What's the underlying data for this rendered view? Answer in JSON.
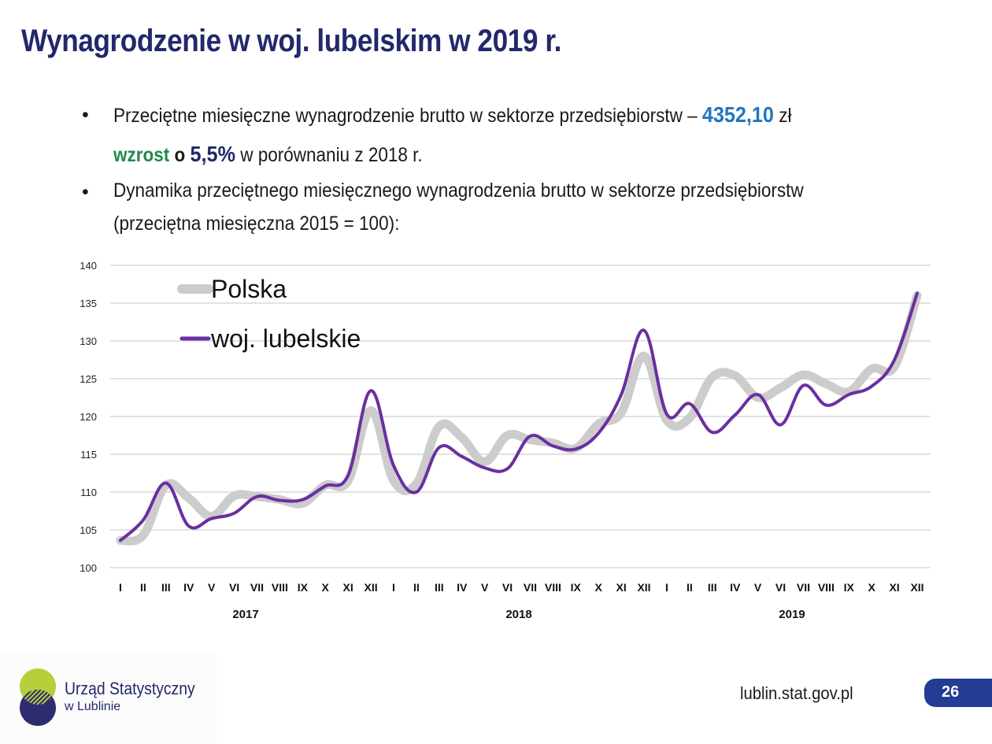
{
  "slide": {
    "title": "Wynagrodzenie w woj. lubelskim w 2019 r.",
    "bullet_symbol": "•",
    "bullet1": {
      "text_before": "Przeciętne miesięczne wynagrodzenie brutto w sektorze przedsiębiorstw –",
      "value": "4352,10",
      "unit": "zł",
      "line2_green": "wzrost",
      "line2_o": "o",
      "line2_value": "5,5%",
      "line2_rest": "w porównaniu z 2018 r."
    },
    "bullet2": {
      "line1": "Dynamika przeciętnego miesięcznego wynagrodzenia brutto w sektorze przedsiębiorstw",
      "line2": "(przeciętna miesięczna 2015 = 100):"
    },
    "colors": {
      "title": "#22286b",
      "value_blue": "#1f77c0",
      "green": "#1f8a4c",
      "polska_line": "#cccccc",
      "lubelskie_line": "#6a2fa0",
      "page_pill": "#233c94"
    }
  },
  "chart_data": {
    "type": "line",
    "title": "",
    "xlabel": "",
    "ylabel": "",
    "ylim": [
      100,
      140
    ],
    "yticks": [
      "100",
      "105",
      "110",
      "115",
      "120",
      "125",
      "130",
      "135",
      "140"
    ],
    "grid": true,
    "legend_placement": "top-left",
    "categories": [
      "I",
      "II",
      "III",
      "IV",
      "V",
      "VI",
      "VII",
      "VIII",
      "IX",
      "X",
      "XI",
      "XII",
      "I",
      "II",
      "III",
      "IV",
      "V",
      "VI",
      "VII",
      "VIII",
      "IX",
      "X",
      "XI",
      "XII",
      "I",
      "II",
      "III",
      "IV",
      "V",
      "VI",
      "VII",
      "VIII",
      "IX",
      "X",
      "XI",
      "XII"
    ],
    "year_groups": [
      {
        "label": "2017",
        "months": 12
      },
      {
        "label": "2018",
        "months": 12
      },
      {
        "label": "2019",
        "months": 12
      }
    ],
    "series": [
      {
        "name": "Polska",
        "color": "#cccccc",
        "values": [
          103.6,
          104.3,
          110.9,
          109.2,
          106.8,
          109.5,
          109.4,
          109.0,
          108.5,
          110.9,
          111.5,
          120.8,
          111.5,
          111.1,
          118.7,
          117.2,
          114.0,
          117.5,
          116.9,
          116.5,
          115.8,
          119.0,
          120.5,
          128.0,
          119.5,
          119.8,
          125.2,
          125.4,
          122.5,
          123.8,
          125.5,
          124.3,
          123.3,
          126.3,
          126.6,
          136.0
        ]
      },
      {
        "name": "woj. lubelskie",
        "color": "#6a2fa0",
        "values": [
          103.6,
          106.3,
          111.2,
          105.5,
          106.5,
          107.2,
          109.4,
          108.9,
          109.0,
          110.8,
          112.2,
          123.4,
          113.5,
          110.0,
          115.9,
          114.7,
          113.2,
          113.1,
          117.4,
          116.1,
          115.7,
          117.8,
          122.9,
          131.4,
          120.3,
          121.7,
          117.9,
          120.2,
          122.9,
          118.9,
          124.1,
          121.5,
          122.9,
          124.0,
          127.5,
          136.3
        ]
      }
    ]
  },
  "footer": {
    "org_name_line1": "Urząd Statystyczny",
    "org_name_line2": "w Lublinie",
    "url": "lublin.stat.gov.pl",
    "page_number": "26"
  }
}
